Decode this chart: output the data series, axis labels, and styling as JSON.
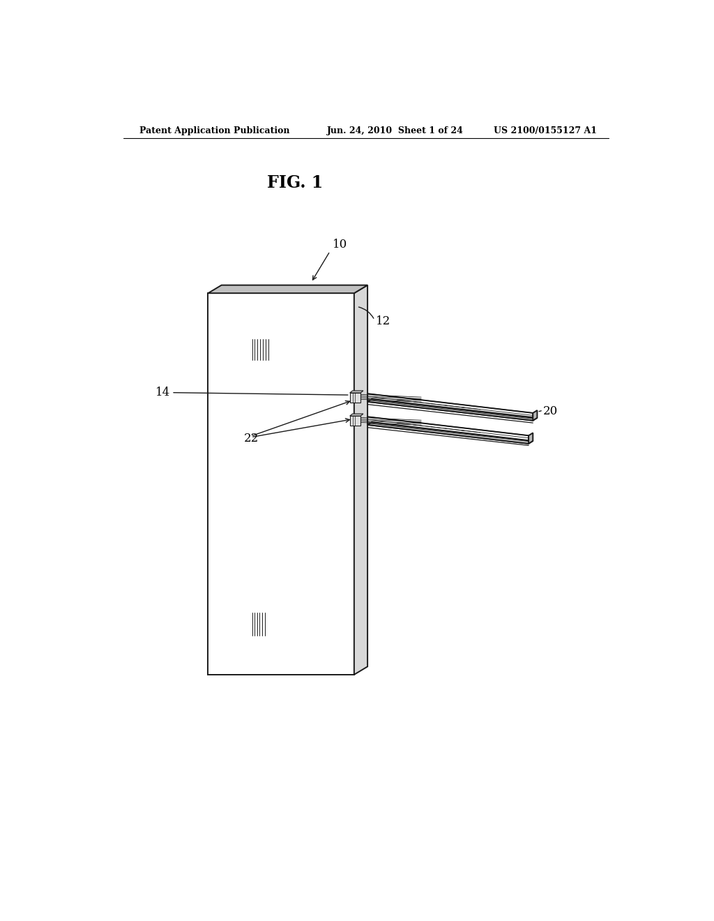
{
  "bg_color": "#ffffff",
  "line_color": "#1a1a1a",
  "header_text": "Patent Application Publication",
  "header_date": "Jun. 24, 2010  Sheet 1 of 24",
  "header_patent": "US 2100/0155127 A1",
  "fig_label": "FIG. 1",
  "lw_main": 1.4,
  "lw_thin": 0.8,
  "lw_hair": 0.5
}
